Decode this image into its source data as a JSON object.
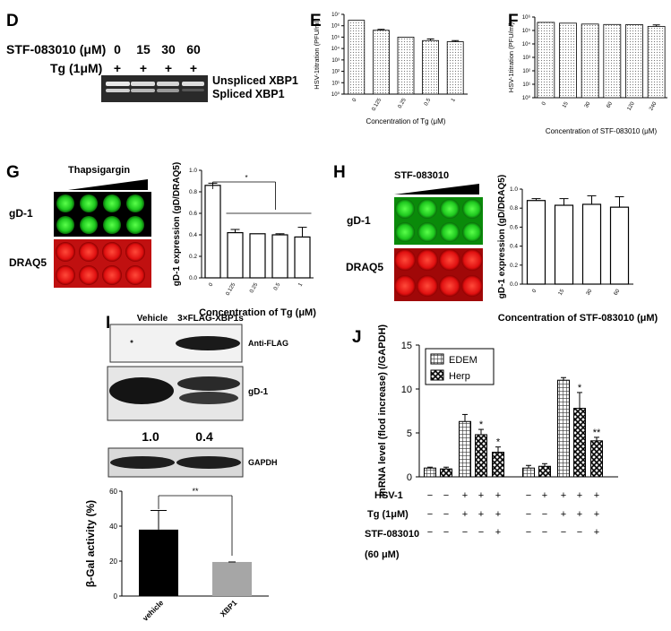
{
  "panel_d": {
    "label": "D",
    "compound_row": "STF-083010 (μM)",
    "tg_row": "Tg (1μM)",
    "doses": [
      "0",
      "15",
      "30",
      "60"
    ],
    "plus": "+",
    "band_top": "Unspliced XBP1",
    "band_bottom": "Spliced XBP1"
  },
  "panel_e": {
    "label": "E"
  },
  "panel_f": {
    "label": "F"
  },
  "panel_g": {
    "label": "G",
    "drug": "Thapsigargin",
    "row1": "gD-1",
    "row2": "DRAQ5"
  },
  "panel_h": {
    "label": "H",
    "drug": "STF-083010",
    "row1": "gD-1",
    "row2": "DRAQ5"
  },
  "panel_i": {
    "label": "I",
    "lane_vehicle": "Vehicle",
    "lane_flag": "3×FLAG-XBP1s",
    "blot1": "Anti-FLAG",
    "blot2": "gD-1",
    "blot3": "GAPDH",
    "quant": [
      "1.0",
      "0.4"
    ]
  },
  "panel_j": {
    "label": "J",
    "rows": [
      {
        "label": "HSV-1",
        "signs": [
          "−",
          "−",
          "+",
          "+",
          "+",
          "−",
          "+",
          "+",
          "+",
          "+"
        ]
      },
      {
        "label": "Tg (1μM)",
        "signs": [
          "−",
          "−",
          "+",
          "+",
          "+",
          "−",
          "−",
          "+",
          "+",
          "+"
        ]
      },
      {
        "label": "STF-083010",
        "signs": [
          "−",
          "−",
          "−",
          "−",
          "+",
          "−",
          "−",
          "−",
          "−",
          "+"
        ]
      },
      {
        "label": "(60 μM)",
        "signs": []
      }
    ]
  },
  "chart_data": [
    {
      "panel": "E",
      "type": "bar",
      "categories": [
        "0",
        "0.125",
        "0.25",
        "0.5",
        "1"
      ],
      "values": [
        3000000,
        400000,
        100000,
        50000,
        40000
      ],
      "errors": [
        0,
        80000,
        0,
        20000,
        10000
      ],
      "ylabel": "HSV-1titration (PFU/ml)",
      "xlabel": "Concentration of Tg (μM)",
      "yscale": "log",
      "ylim": [
        1,
        10000000
      ],
      "yticks": [
        "10⁰",
        "10¹",
        "10²",
        "10³",
        "10⁴",
        "10⁵",
        "10⁶",
        "10⁷"
      ]
    },
    {
      "panel": "F",
      "type": "bar",
      "categories": [
        "0",
        "15",
        "30",
        "60",
        "120",
        "240"
      ],
      "values": [
        400000,
        350000,
        300000,
        280000,
        270000,
        200000
      ],
      "errors": [
        0,
        0,
        0,
        0,
        0,
        60000
      ],
      "ylabel": "HSV-1titration (PFU/ml)",
      "xlabel": "Concentration of STF-083010 (μM)",
      "yscale": "log",
      "ylim": [
        1,
        1000000
      ],
      "yticks": [
        "10⁰",
        "10¹",
        "10²",
        "10³",
        "10⁴",
        "10⁵",
        "10⁶"
      ]
    },
    {
      "panel": "G",
      "type": "bar",
      "categories": [
        "0",
        "0.125",
        "0.25",
        "0.5",
        "1"
      ],
      "values": [
        0.86,
        0.42,
        0.41,
        0.4,
        0.38
      ],
      "errors": [
        0.02,
        0.03,
        0.0,
        0.01,
        0.09
      ],
      "ylabel": "gD-1 expression (gD/DRAQ5)",
      "xlabel": "Concentration of Tg (μM)",
      "ylim": [
        0,
        1.0
      ],
      "yticks": [
        "0.0",
        "0.2",
        "0.4",
        "0.6",
        "0.8",
        "1.0"
      ],
      "annotation": "*"
    },
    {
      "panel": "H",
      "type": "bar",
      "categories": [
        "0",
        "15",
        "30",
        "60"
      ],
      "values": [
        0.88,
        0.83,
        0.84,
        0.81
      ],
      "errors": [
        0.02,
        0.07,
        0.09,
        0.11
      ],
      "ylabel": "gD-1 expression (gD/DRAQ5)",
      "xlabel": "Concentration of STF-083010 (μM)",
      "ylim": [
        0,
        1.0
      ],
      "yticks": [
        "0.0",
        "0.2",
        "0.4",
        "0.6",
        "0.8",
        "1.0"
      ]
    },
    {
      "panel": "I",
      "type": "bar",
      "categories": [
        "vehicle",
        "XBP1"
      ],
      "values": [
        38,
        19.5
      ],
      "errors": [
        11,
        0
      ],
      "colors": [
        "#000000",
        "#a6a6a6"
      ],
      "ylabel": "β-Gal activity (%)",
      "ylim": [
        0,
        60
      ],
      "yticks": [
        "0",
        "20",
        "40",
        "60"
      ],
      "annotation": "**"
    },
    {
      "panel": "J",
      "type": "bar",
      "series": [
        {
          "name": "EDEM",
          "values": [
            1.0,
            6.3,
            1.0,
            11.0
          ],
          "errors": [
            0.1,
            0.8,
            0.3,
            0.3
          ]
        },
        {
          "name": "Herp",
          "values": [
            0.9,
            4.8,
            1.2,
            7.8
          ],
          "errors": [
            0.2,
            0.6,
            0.3,
            1.8
          ]
        }
      ],
      "extra_bars": [
        {
          "series": "Herp",
          "value": 2.8,
          "error": 0.6,
          "star": "*"
        },
        {
          "series": "Herp",
          "value": 4.1,
          "error": 0.4,
          "star": "**"
        }
      ],
      "stars": [
        "*",
        "*",
        "*",
        "**"
      ],
      "ylabel": "mRNA level (flod increase) (/GAPDH)",
      "ylim": [
        0,
        15
      ],
      "yticks": [
        "0",
        "5",
        "10",
        "15"
      ]
    }
  ]
}
